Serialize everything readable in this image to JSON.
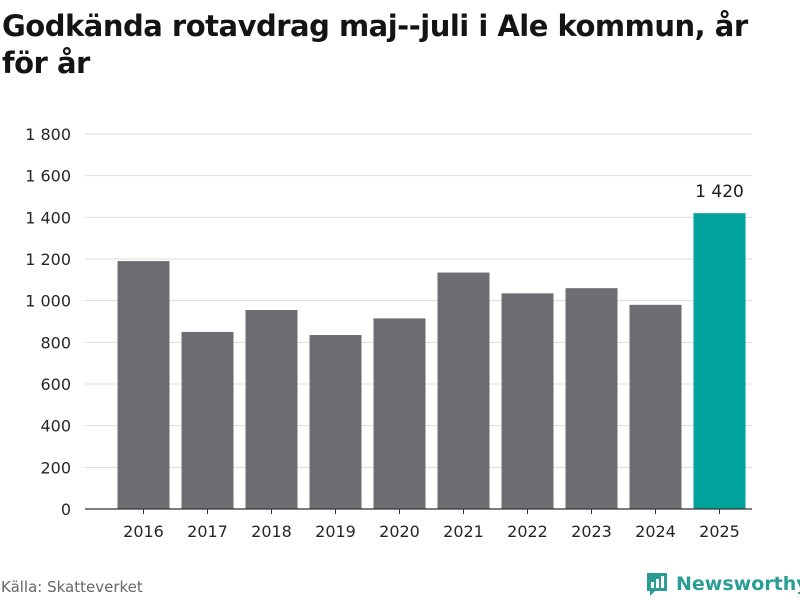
{
  "title": "Godkända rotavdrag maj--juli i Ale kommun, år för år",
  "source": "Källa: Skatteverket",
  "brand": {
    "name": "Newsworthy",
    "icon": "newsworthy-logo-icon"
  },
  "colors": {
    "bar": "#6e6d73",
    "highlight": "#00a29b",
    "grid": "#dddddd",
    "axis": "#333333",
    "brand": "#2a9d94"
  },
  "chart_data": {
    "type": "bar",
    "title": "Godkända rotavdrag maj--juli i Ale kommun, år för år",
    "xlabel": "",
    "ylabel": "",
    "categories": [
      "2016",
      "2017",
      "2018",
      "2019",
      "2020",
      "2021",
      "2022",
      "2023",
      "2024",
      "2025"
    ],
    "values": [
      1190,
      850,
      955,
      835,
      915,
      1135,
      1035,
      1060,
      980,
      1420
    ],
    "ylim": [
      0,
      1800
    ],
    "yticks": [
      0,
      200,
      400,
      600,
      800,
      1000,
      1200,
      1400,
      1600,
      1800
    ],
    "ytick_labels": [
      "0",
      "200",
      "400",
      "600",
      "800",
      "1 000",
      "1 200",
      "1 400",
      "1 600",
      "1 800"
    ],
    "highlight_index": 9,
    "data_labels": [
      {
        "index": 9,
        "text": "1 420"
      }
    ],
    "grid": true,
    "legend": "none"
  }
}
